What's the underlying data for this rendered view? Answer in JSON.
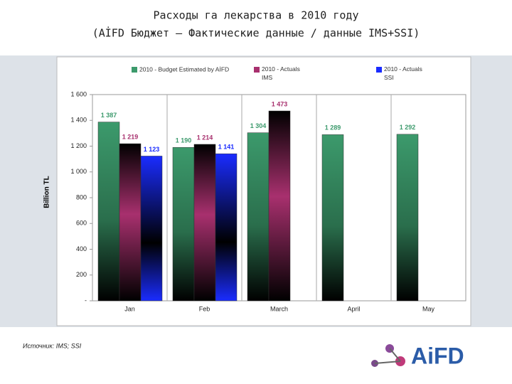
{
  "chart_data": {
    "type": "bar",
    "title": "Расходы га лекарства в 2010 году",
    "subtitle": "(AİFD Бюджет – Фактические данные / данные IMS+SSI)",
    "y_label": "Billion TL",
    "source": "Источник: IMS; SSI",
    "logo_text": "AiFD",
    "categories": [
      "Jan",
      "Feb",
      "March",
      "April",
      "May"
    ],
    "series": [
      {
        "name": "2010 - Budget Estimated by AİFD",
        "color": "#3c9a6c",
        "values": [
          1387,
          1190,
          1304,
          1289,
          1292
        ],
        "value_labels": [
          "1 387",
          "1 190",
          "1 304",
          "1 289",
          "1 292"
        ]
      },
      {
        "name": "2010 - Actuals IMS",
        "color": "#a8306e",
        "values": [
          1219,
          1214,
          1473,
          null,
          null
        ],
        "value_labels": [
          "1 219",
          "1 214",
          "1 473",
          null,
          null
        ]
      },
      {
        "name": "2010 - Actuals SSI",
        "color": "#1a2cff",
        "values": [
          1123,
          1141,
          null,
          null,
          null
        ],
        "value_labels": [
          "1 123",
          "1 141",
          null,
          null,
          null
        ]
      }
    ],
    "ylim": [
      0,
      1600
    ],
    "yticks": [
      {
        "value": 0,
        "label": "-"
      },
      200,
      400,
      600,
      800,
      {
        "value": 1000,
        "label": "1 000"
      },
      {
        "value": 1200,
        "label": "1 200"
      },
      {
        "value": 1400,
        "label": "1 400"
      },
      {
        "value": 1600,
        "label": "1 600"
      }
    ],
    "legend": "top"
  }
}
